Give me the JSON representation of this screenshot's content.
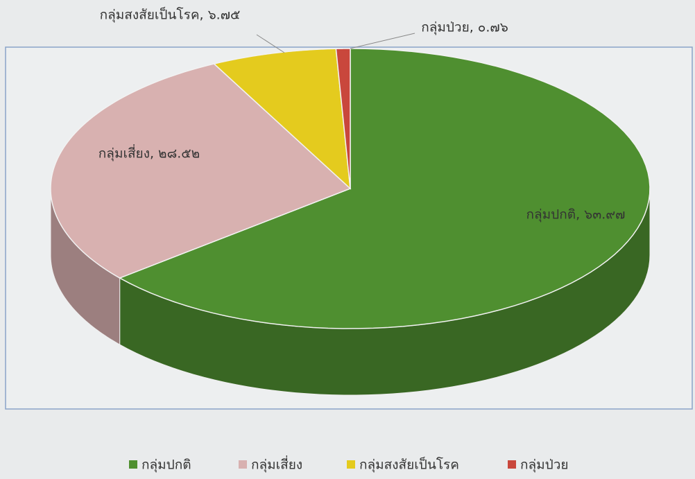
{
  "chart_data": {
    "type": "pie",
    "categories": [
      "กลุ่มปกติ",
      "กลุ่มเสี่ยง",
      "กลุ่มสงสัยเป็นโรค",
      "กลุ่มป่วย"
    ],
    "values": [
      63.97,
      28.52,
      6.75,
      0.76
    ],
    "value_labels": [
      "กลุ่มปกติ, ๖๓.๙๗",
      "กลุ่มเสี่ยง, ๒๘.๕๒",
      "กลุ่มสงสัยเป็นโรค, ๖.๗๕",
      "กลุ่มป่วย, ๐.๗๖"
    ],
    "colors": [
      "#4f8f30",
      "#d8b1b0",
      "#e4cb1e",
      "#c9473c"
    ],
    "legend": "bottom"
  }
}
